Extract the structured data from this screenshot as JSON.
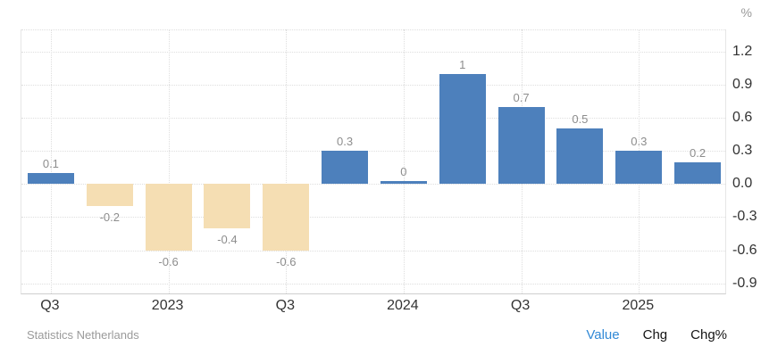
{
  "chart_data": {
    "type": "bar",
    "title": "",
    "ylabel_unit": "%",
    "values": [
      0.1,
      -0.2,
      -0.6,
      -0.4,
      -0.6,
      0.3,
      0,
      1,
      0.7,
      0.5,
      0.3,
      0.2
    ],
    "bar_labels": [
      "0.1",
      "-0.2",
      "-0.6",
      "-0.4",
      "-0.6",
      "0.3",
      "0",
      "1",
      "0.7",
      "0.5",
      "0.3",
      "0.2"
    ],
    "x_ticks": [
      {
        "index": 0,
        "label": "Q3"
      },
      {
        "index": 2,
        "label": "2023"
      },
      {
        "index": 4,
        "label": "Q3"
      },
      {
        "index": 6,
        "label": "2024"
      },
      {
        "index": 8,
        "label": "Q3"
      },
      {
        "index": 10,
        "label": "2025"
      }
    ],
    "y_ticks": [
      "1.2",
      "0.9",
      "0.6",
      "0.3",
      "0.0",
      "-0.3",
      "-0.6",
      "-0.9"
    ],
    "ylim": [
      -1.0,
      1.4
    ],
    "grid": "dotted",
    "legend": "none",
    "colors": {
      "positive_bar": "#4d80bc",
      "negative_bar": "#f5deb3",
      "grid": "#dedede",
      "bar_label": "#8d8d8d",
      "axis_label": "#333333",
      "active_link": "#3189d6",
      "inactive_link": "#141414"
    }
  },
  "footer": {
    "source": "Statistics Netherlands",
    "links": [
      {
        "label": "Value",
        "active": true
      },
      {
        "label": "Chg",
        "active": false
      },
      {
        "label": "Chg%",
        "active": false
      }
    ]
  }
}
